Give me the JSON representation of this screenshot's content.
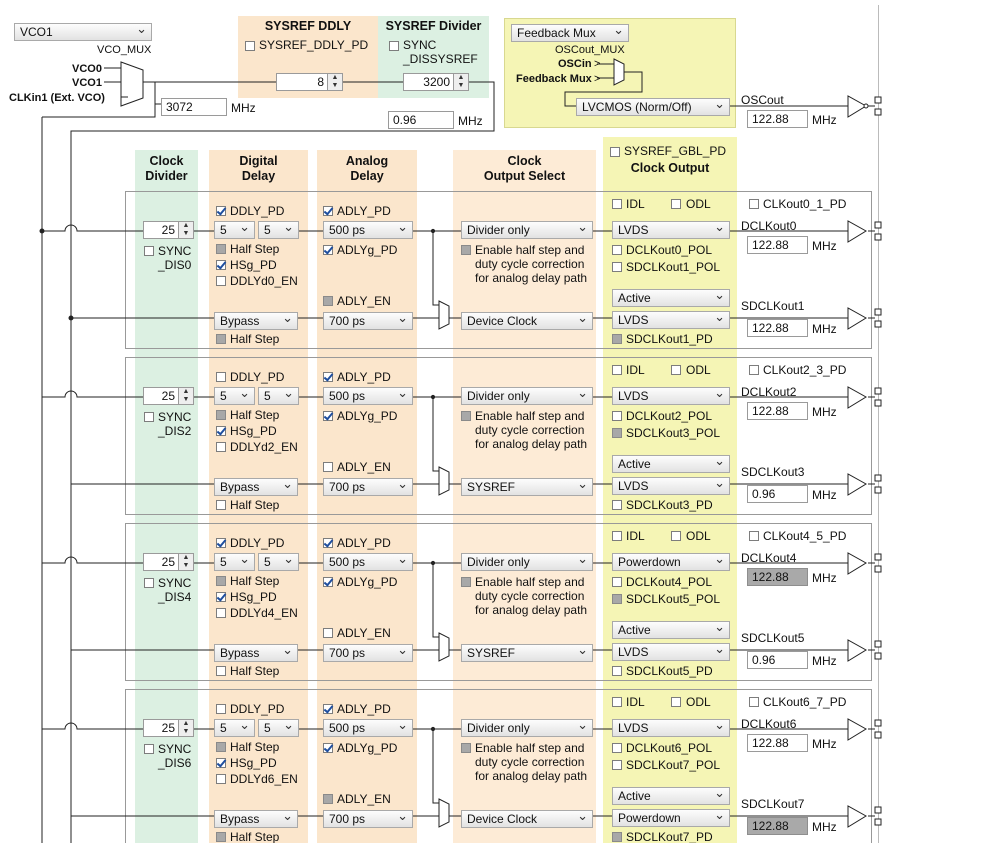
{
  "vco_select": "VCO1",
  "vco_mux": {
    "label": "VCO_MUX",
    "inputs": [
      "VCO0",
      "VCO1",
      "CLKin1 (Ext. VCO)"
    ],
    "freq": "3072",
    "unit": "MHz"
  },
  "sysref_ddly": {
    "title": "SYSREF DDLY",
    "pd_label": "SYSREF_DDLY_PD",
    "value": "8"
  },
  "sysref_divider": {
    "title": "SYSREF Divider",
    "sync_label_1": "SYNC",
    "sync_label_2": "_DISSYSREF",
    "value": "3200",
    "freq": "0.96",
    "unit": "MHz"
  },
  "feedback": {
    "select": "Feedback Mux",
    "oscout_mux": "OSCout_MUX",
    "oscin": "OSCin",
    "feedback_mux": "Feedback Mux",
    "lvcmos": "LVCMOS (Norm/Off)",
    "oscout_label": "OSCout",
    "oscout_freq": "122.88",
    "unit": "MHz"
  },
  "headers": {
    "clock_divider": [
      "Clock",
      "Divider"
    ],
    "digital_delay": [
      "Digital",
      "Delay"
    ],
    "analog_delay": [
      "Analog",
      "Delay"
    ],
    "clock_output_select": [
      "Clock",
      "Output Select"
    ],
    "sysref_gbl_pd": "SYSREF_GBL_PD",
    "clock_output": "Clock Output"
  },
  "common": {
    "half_step": "Half Step",
    "hsg_pd": "HSg_PD",
    "adly_pd": "ADLY_PD",
    "adlyg_pd": "ADLYg_PD",
    "adly_en": "ADLY_EN",
    "ddly_pd": "DDLY_PD",
    "bypass": "Bypass",
    "d500": "500 ps",
    "d700": "700 ps",
    "divider_only": "Divider only",
    "enable_text": [
      "Enable half step and",
      "duty cycle correction",
      "for analog delay path"
    ],
    "idl": "IDL",
    "odl": "ODL",
    "active": "Active",
    "mhz": "MHz",
    "five": "5"
  },
  "groups": [
    {
      "divider": "25",
      "sync": [
        "SYNC",
        "_DIS0"
      ],
      "ddly_pd": true,
      "ddlyd": "DDLYd0_EN",
      "adly_en_gray": true,
      "sel_bottom": "Device Clock",
      "pd_label": "CLKout0_1_PD",
      "fmt_top": "LVDS",
      "pol_top": "DCLKout0_POL",
      "pol_bot": "SDCLKout1_POL",
      "pol_bot_gray": false,
      "fmt_bot": "LVDS",
      "sd_pd": "SDCLKout1_PD",
      "sd_pd_gray": true,
      "out_top": "DCLKout0",
      "freq_top": "122.88",
      "top_gray": false,
      "out_bot": "SDCLKout1",
      "freq_bot": "122.88",
      "bot_gray": false
    },
    {
      "divider": "25",
      "sync": [
        "SYNC",
        "_DIS2"
      ],
      "ddly_pd": false,
      "ddlyd": "DDLYd2_EN",
      "adly_en_gray": false,
      "sel_bottom": "SYSREF",
      "pd_label": "CLKout2_3_PD",
      "fmt_top": "LVDS",
      "pol_top": "DCLKout2_POL",
      "pol_bot": "SDCLKout3_POL",
      "pol_bot_gray": true,
      "fmt_bot": "LVDS",
      "sd_pd": "SDCLKout3_PD",
      "sd_pd_gray": false,
      "out_top": "DCLKout2",
      "freq_top": "122.88",
      "top_gray": false,
      "out_bot": "SDCLKout3",
      "freq_bot": "0.96",
      "bot_gray": false
    },
    {
      "divider": "25",
      "sync": [
        "SYNC",
        "_DIS4"
      ],
      "ddly_pd": true,
      "ddlyd": "DDLYd4_EN",
      "adly_en_gray": false,
      "sel_bottom": "SYSREF",
      "pd_label": "CLKout4_5_PD",
      "fmt_top": "Powerdown",
      "pol_top": "DCLKout4_POL",
      "pol_bot": "SDCLKout5_POL",
      "pol_bot_gray": true,
      "fmt_bot": "LVDS",
      "sd_pd": "SDCLKout5_PD",
      "sd_pd_gray": false,
      "out_top": "DCLKout4",
      "freq_top": "122.88",
      "top_gray": true,
      "out_bot": "SDCLKout5",
      "freq_bot": "0.96",
      "bot_gray": false
    },
    {
      "divider": "25",
      "sync": [
        "SYNC",
        "_DIS6"
      ],
      "ddly_pd": false,
      "ddlyd": "DDLYd6_EN",
      "adly_en_gray": true,
      "sel_bottom": "Device Clock",
      "pd_label": "CLKout6_7_PD",
      "fmt_top": "LVDS",
      "pol_top": "DCLKout6_POL",
      "pol_bot": "SDCLKout7_POL",
      "pol_bot_gray": false,
      "fmt_bot": "Powerdown",
      "sd_pd": "SDCLKout7_PD",
      "sd_pd_gray": true,
      "out_top": "DCLKout6",
      "freq_top": "122.88",
      "top_gray": false,
      "out_bot": "SDCLKout7",
      "freq_bot": "122.88",
      "bot_gray": true
    }
  ]
}
